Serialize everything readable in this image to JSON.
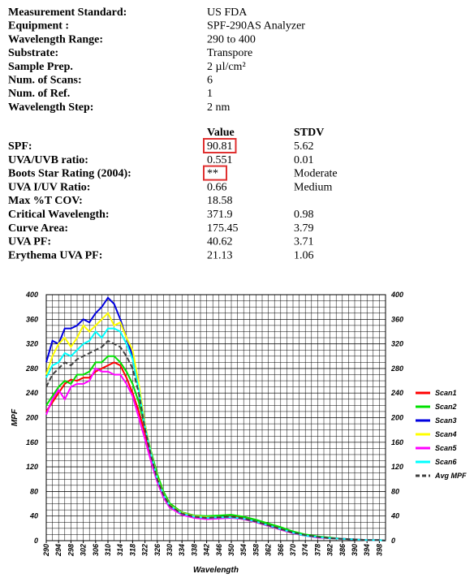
{
  "header": {
    "rows": [
      {
        "label": "Measurement Standard:",
        "value": "US FDA"
      },
      {
        "label": "Equipment :",
        "value": "SPF-290AS Analyzer"
      },
      {
        "label": "Wavelength Range:",
        "value": "290 to 400"
      },
      {
        "label": "Substrate:",
        "value": "Transpore"
      },
      {
        "label": "Sample Prep.",
        "value": "2 µl/cm²"
      },
      {
        "label": "Num. of Scans:",
        "value": "6"
      },
      {
        "label": "Num. of Ref.",
        "value": "1"
      },
      {
        "label": "Wavelength Step:",
        "value": "2 nm"
      }
    ]
  },
  "results": {
    "headers": [
      "Value",
      "STDV"
    ],
    "rows": [
      {
        "label": "SPF:",
        "value": "90.81",
        "stdv": "5.62",
        "highlight": true
      },
      {
        "label": "UVA/UVB ratio:",
        "value": "0.551",
        "stdv": "0.01"
      },
      {
        "label": "Boots Star Rating (2004):",
        "value": "**",
        "stdv": "Moderate",
        "highlight": true
      },
      {
        "label": "UVA I/UV Ratio:",
        "value": "0.66",
        "stdv": "Medium"
      },
      {
        "label": "Max %T COV:",
        "value": "18.58"
      },
      {
        "label": "Critical Wavelength:",
        "value": "371.9",
        "stdv": "0.98"
      },
      {
        "label": "Curve Area:",
        "value": "175.45",
        "stdv": "3.79"
      },
      {
        "label": "UVA PF:",
        "value": "40.62",
        "stdv": "3.71"
      },
      {
        "label": "Erythema UVA PF:",
        "value": "21.13",
        "stdv": "1.06"
      }
    ]
  },
  "chart_data": {
    "type": "line",
    "x_label": "Wavelength",
    "y_label": "MPF",
    "x": [
      290,
      292,
      294,
      296,
      298,
      300,
      302,
      304,
      306,
      308,
      310,
      312,
      314,
      316,
      318,
      320,
      322,
      324,
      326,
      328,
      330,
      334,
      338,
      342,
      346,
      350,
      354,
      358,
      362,
      366,
      370,
      374,
      378,
      382,
      386,
      390,
      394,
      398,
      400
    ],
    "xlim": [
      290,
      400
    ],
    "ylim": [
      0,
      400
    ],
    "xticks": [
      290,
      294,
      298,
      302,
      306,
      310,
      314,
      318,
      322,
      326,
      330,
      334,
      338,
      342,
      346,
      350,
      354,
      358,
      362,
      366,
      370,
      374,
      378,
      382,
      386,
      390,
      394,
      398
    ],
    "yticks": [
      0,
      40,
      80,
      120,
      160,
      200,
      240,
      280,
      320,
      360,
      400
    ],
    "grid": true,
    "legend": "right",
    "series": [
      {
        "name": "Scan1",
        "color": "#ff0000",
        "dash": false,
        "values": [
          210,
          225,
          240,
          255,
          262,
          260,
          265,
          265,
          275,
          280,
          285,
          290,
          285,
          265,
          240,
          210,
          175,
          135,
          100,
          74,
          57,
          44,
          39,
          37,
          38,
          39,
          37,
          32,
          26,
          20,
          14,
          9,
          6,
          4,
          3,
          2,
          1,
          1,
          0
        ]
      },
      {
        "name": "Scan2",
        "color": "#00e000",
        "dash": false,
        "values": [
          220,
          235,
          250,
          260,
          255,
          270,
          270,
          275,
          290,
          290,
          300,
          300,
          290,
          275,
          255,
          225,
          185,
          145,
          108,
          80,
          61,
          46,
          41,
          40,
          41,
          42,
          39,
          34,
          28,
          22,
          15,
          10,
          7,
          5,
          3,
          2,
          1,
          1,
          0
        ]
      },
      {
        "name": "Scan3",
        "color": "#0000e0",
        "dash": false,
        "values": [
          290,
          325,
          320,
          345,
          345,
          350,
          360,
          355,
          370,
          380,
          395,
          385,
          360,
          330,
          300,
          250,
          190,
          140,
          100,
          75,
          58,
          45,
          40,
          38,
          38,
          38,
          35,
          30,
          24,
          18,
          12,
          8,
          6,
          4,
          3,
          2,
          1,
          1,
          0
        ]
      },
      {
        "name": "Scan4",
        "color": "#ffff00",
        "dash": false,
        "values": [
          270,
          300,
          320,
          330,
          315,
          330,
          350,
          340,
          350,
          360,
          370,
          350,
          355,
          330,
          310,
          255,
          190,
          142,
          102,
          76,
          58,
          45,
          40,
          38,
          38,
          38,
          35,
          30,
          24,
          18,
          12,
          8,
          6,
          4,
          3,
          2,
          1,
          1,
          0
        ]
      },
      {
        "name": "Scan5",
        "color": "#ff00ff",
        "dash": false,
        "values": [
          205,
          230,
          245,
          230,
          250,
          255,
          255,
          260,
          280,
          275,
          275,
          270,
          270,
          255,
          235,
          200,
          165,
          128,
          95,
          70,
          54,
          42,
          37,
          35,
          36,
          37,
          35,
          30,
          24,
          18,
          12,
          8,
          5,
          4,
          3,
          2,
          1,
          1,
          0
        ]
      },
      {
        "name": "Scan6",
        "color": "#00ffff",
        "dash": false,
        "values": [
          265,
          285,
          290,
          305,
          300,
          310,
          320,
          325,
          340,
          330,
          345,
          345,
          340,
          320,
          295,
          245,
          185,
          140,
          100,
          75,
          57,
          44,
          39,
          37,
          38,
          38,
          36,
          31,
          25,
          19,
          13,
          8,
          6,
          4,
          3,
          2,
          1,
          1,
          0
        ]
      },
      {
        "name": "Avg MPF",
        "color": "#404040",
        "dash": true,
        "values": [
          250,
          270,
          280,
          290,
          285,
          295,
          300,
          305,
          310,
          315,
          325,
          320,
          315,
          300,
          280,
          240,
          182,
          138,
          100,
          75,
          57,
          44,
          39,
          37,
          38,
          39,
          36,
          31,
          25,
          19,
          13,
          9,
          6,
          4,
          3,
          2,
          1,
          1,
          0
        ]
      }
    ]
  }
}
